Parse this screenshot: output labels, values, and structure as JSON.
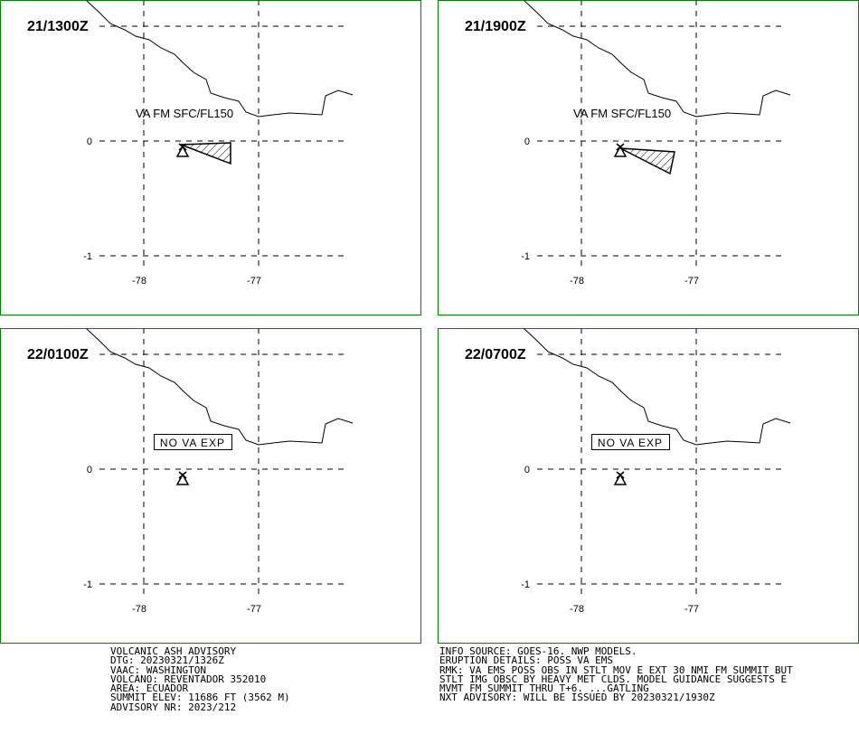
{
  "panels": [
    {
      "time": "21/1300Z",
      "ash_label": "VA FM SFC/FL150"
    },
    {
      "time": "21/1900Z",
      "ash_label": "VA FM SFC/FL150"
    },
    {
      "time": "22/0100Z",
      "note": "NO VA EXP"
    },
    {
      "time": "22/0700Z",
      "note": "NO VA EXP"
    }
  ],
  "lat_ticks": [
    "0",
    "-1"
  ],
  "lon_ticks": [
    "-78",
    "-77"
  ],
  "advisory_left": [
    "VOLCANIC ASH ADVISORY",
    "DTG: 20230321/1326Z",
    "VAAC: WASHINGTON",
    "VOLCANO: REVENTADOR 352010",
    "AREA: ECUADOR",
    "SUMMIT ELEV: 11686 FT (3562 M)",
    "ADVISORY NR: 2023/212"
  ],
  "advisory_right": [
    "INFO SOURCE: GOES-16. NWP MODELS.",
    "ERUPTION DETAILS: POSS VA EMS",
    "RMK: VA EMS POSS OBS IN STLT MOV E EXT 30 NMI FM SUMMIT BUT",
    "STLT IMG OBSC BY HEAVY MET CLDS. MODEL GUIDANCE SUGGESTS E",
    "MVMT FM SUMMIT THRU T+6. ...GATLING",
    "NXT ADVISORY: WILL BE ISSUED BY 20230321/1930Z"
  ]
}
